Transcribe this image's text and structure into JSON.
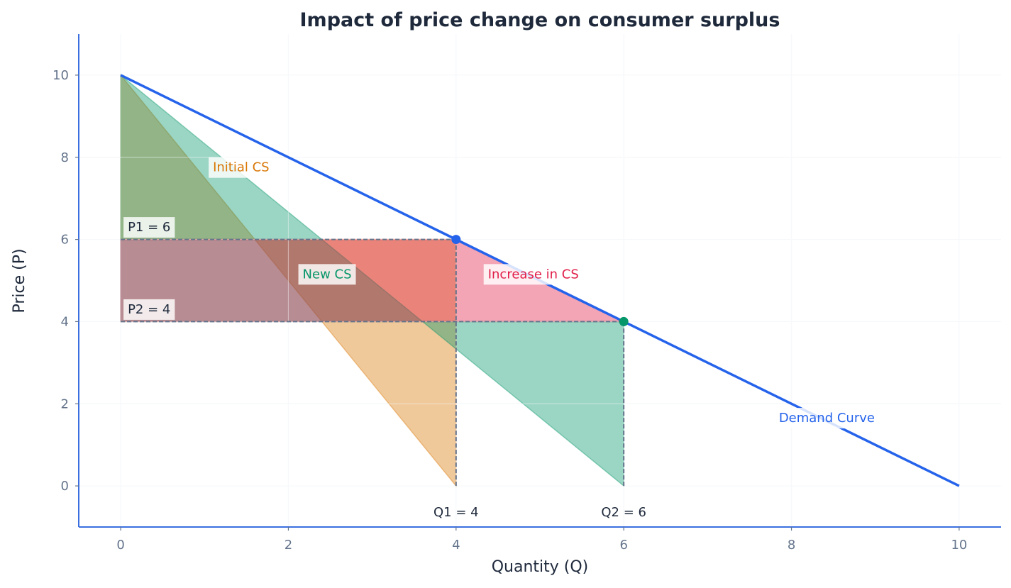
{
  "chart_data": {
    "type": "area",
    "title": "Impact of price change on consumer surplus",
    "xlabel": "Quantity (Q)",
    "ylabel": "Price (P)",
    "xlim": [
      -0.5,
      10.5
    ],
    "ylim": [
      -1,
      11
    ],
    "xticks": [
      0,
      2,
      4,
      6,
      8,
      10
    ],
    "yticks": [
      0,
      2,
      4,
      6,
      8,
      10
    ],
    "grid": true,
    "demand_curve": {
      "name": "Demand Curve",
      "color": "#2563eb",
      "points": [
        [
          0,
          10
        ],
        [
          10,
          0
        ]
      ],
      "label_at": [
        7.85,
        1.65
      ]
    },
    "regions": [
      {
        "name": "Initial CS",
        "color": "#d97706",
        "polygon": [
          [
            0,
            10
          ],
          [
            4,
            0
          ],
          [
            4,
            6
          ],
          [
            0,
            6
          ]
        ],
        "label_at": [
          1.1,
          7.75
        ]
      },
      {
        "name": "New CS",
        "color": "#059669",
        "polygon": [
          [
            0,
            10
          ],
          [
            6,
            0
          ],
          [
            6,
            4
          ],
          [
            0,
            4
          ]
        ],
        "label_at": [
          2.17,
          5.15
        ]
      },
      {
        "name": "Increase in CS",
        "color": "#e11d48",
        "polygon": [
          [
            0,
            6
          ],
          [
            4,
            6
          ],
          [
            6,
            4
          ],
          [
            0,
            4
          ]
        ],
        "label_at": [
          4.38,
          5.15
        ]
      }
    ],
    "points": [
      {
        "x": 4,
        "y": 6,
        "color": "#2563eb"
      },
      {
        "x": 6,
        "y": 4,
        "color": "#059669"
      }
    ],
    "reference_lines": [
      {
        "from": [
          0,
          6
        ],
        "to": [
          4,
          6
        ]
      },
      {
        "from": [
          0,
          4
        ],
        "to": [
          6,
          4
        ]
      },
      {
        "from": [
          4,
          0
        ],
        "to": [
          4,
          6
        ]
      },
      {
        "from": [
          6,
          0
        ],
        "to": [
          6,
          4
        ]
      }
    ],
    "price_labels": [
      {
        "text": "P1 = 6",
        "y": 6
      },
      {
        "text": "P2 = 4",
        "y": 4
      }
    ],
    "quantity_labels": [
      {
        "text": "Q1 = 4",
        "x": 4
      },
      {
        "text": "Q2 = 6",
        "x": 6
      }
    ]
  }
}
